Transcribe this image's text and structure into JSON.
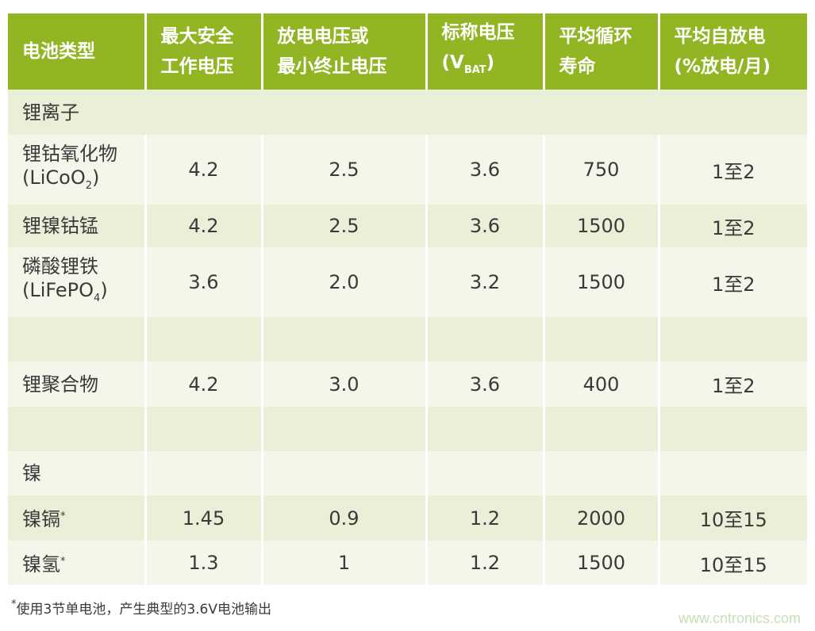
{
  "headers": [
    "电池类型",
    "最大安全\n工作电压",
    "放电电压或\n最小终止电压",
    "标称电压",
    "平均循环\n寿命",
    "平均自放电\n(%放电/月)"
  ],
  "nominal_header": {
    "prefix": "(V",
    "sub": "BAT",
    "suffix": ")"
  },
  "sections": {
    "li_ion": "锂离子",
    "nickel": "镍"
  },
  "rows": {
    "licoo2": {
      "name": "锂钴氧化物",
      "formula": "(LiCoO",
      "formula_sub": "2",
      "formula_end": ")",
      "v": [
        "4.2",
        "2.5",
        "3.6",
        "750",
        "1至2"
      ]
    },
    "nmc": {
      "name": "锂镍钴锰",
      "v": [
        "4.2",
        "2.5",
        "3.6",
        "1500",
        "1至2"
      ]
    },
    "lifepo4": {
      "name": "磷酸锂铁",
      "formula": "(LiFePO",
      "formula_sub": "4",
      "formula_end": ")",
      "v": [
        "3.6",
        "2.0",
        "3.2",
        "1500",
        "1至2"
      ]
    },
    "lipo": {
      "name": "锂聚合物",
      "v": [
        "4.2",
        "3.0",
        "3.6",
        "400",
        "1至2"
      ]
    },
    "nicd": {
      "name": "镍镉",
      "mark": "*",
      "v": [
        "1.45",
        "0.9",
        "1.2",
        "2000",
        "10至15"
      ]
    },
    "nimh": {
      "name": "镍氢",
      "mark": "*",
      "v": [
        "1.3",
        "1",
        "1.2",
        "1500",
        "10至15"
      ]
    }
  },
  "footnote": {
    "mark": "*",
    "text": "使用3节单电池，产生典型的3.6V电池输出"
  },
  "watermark": "www.cntronics.com",
  "colors": {
    "header": "#92b523",
    "row_dark": "#eaefd8",
    "row_light": "#f4f6ea"
  }
}
